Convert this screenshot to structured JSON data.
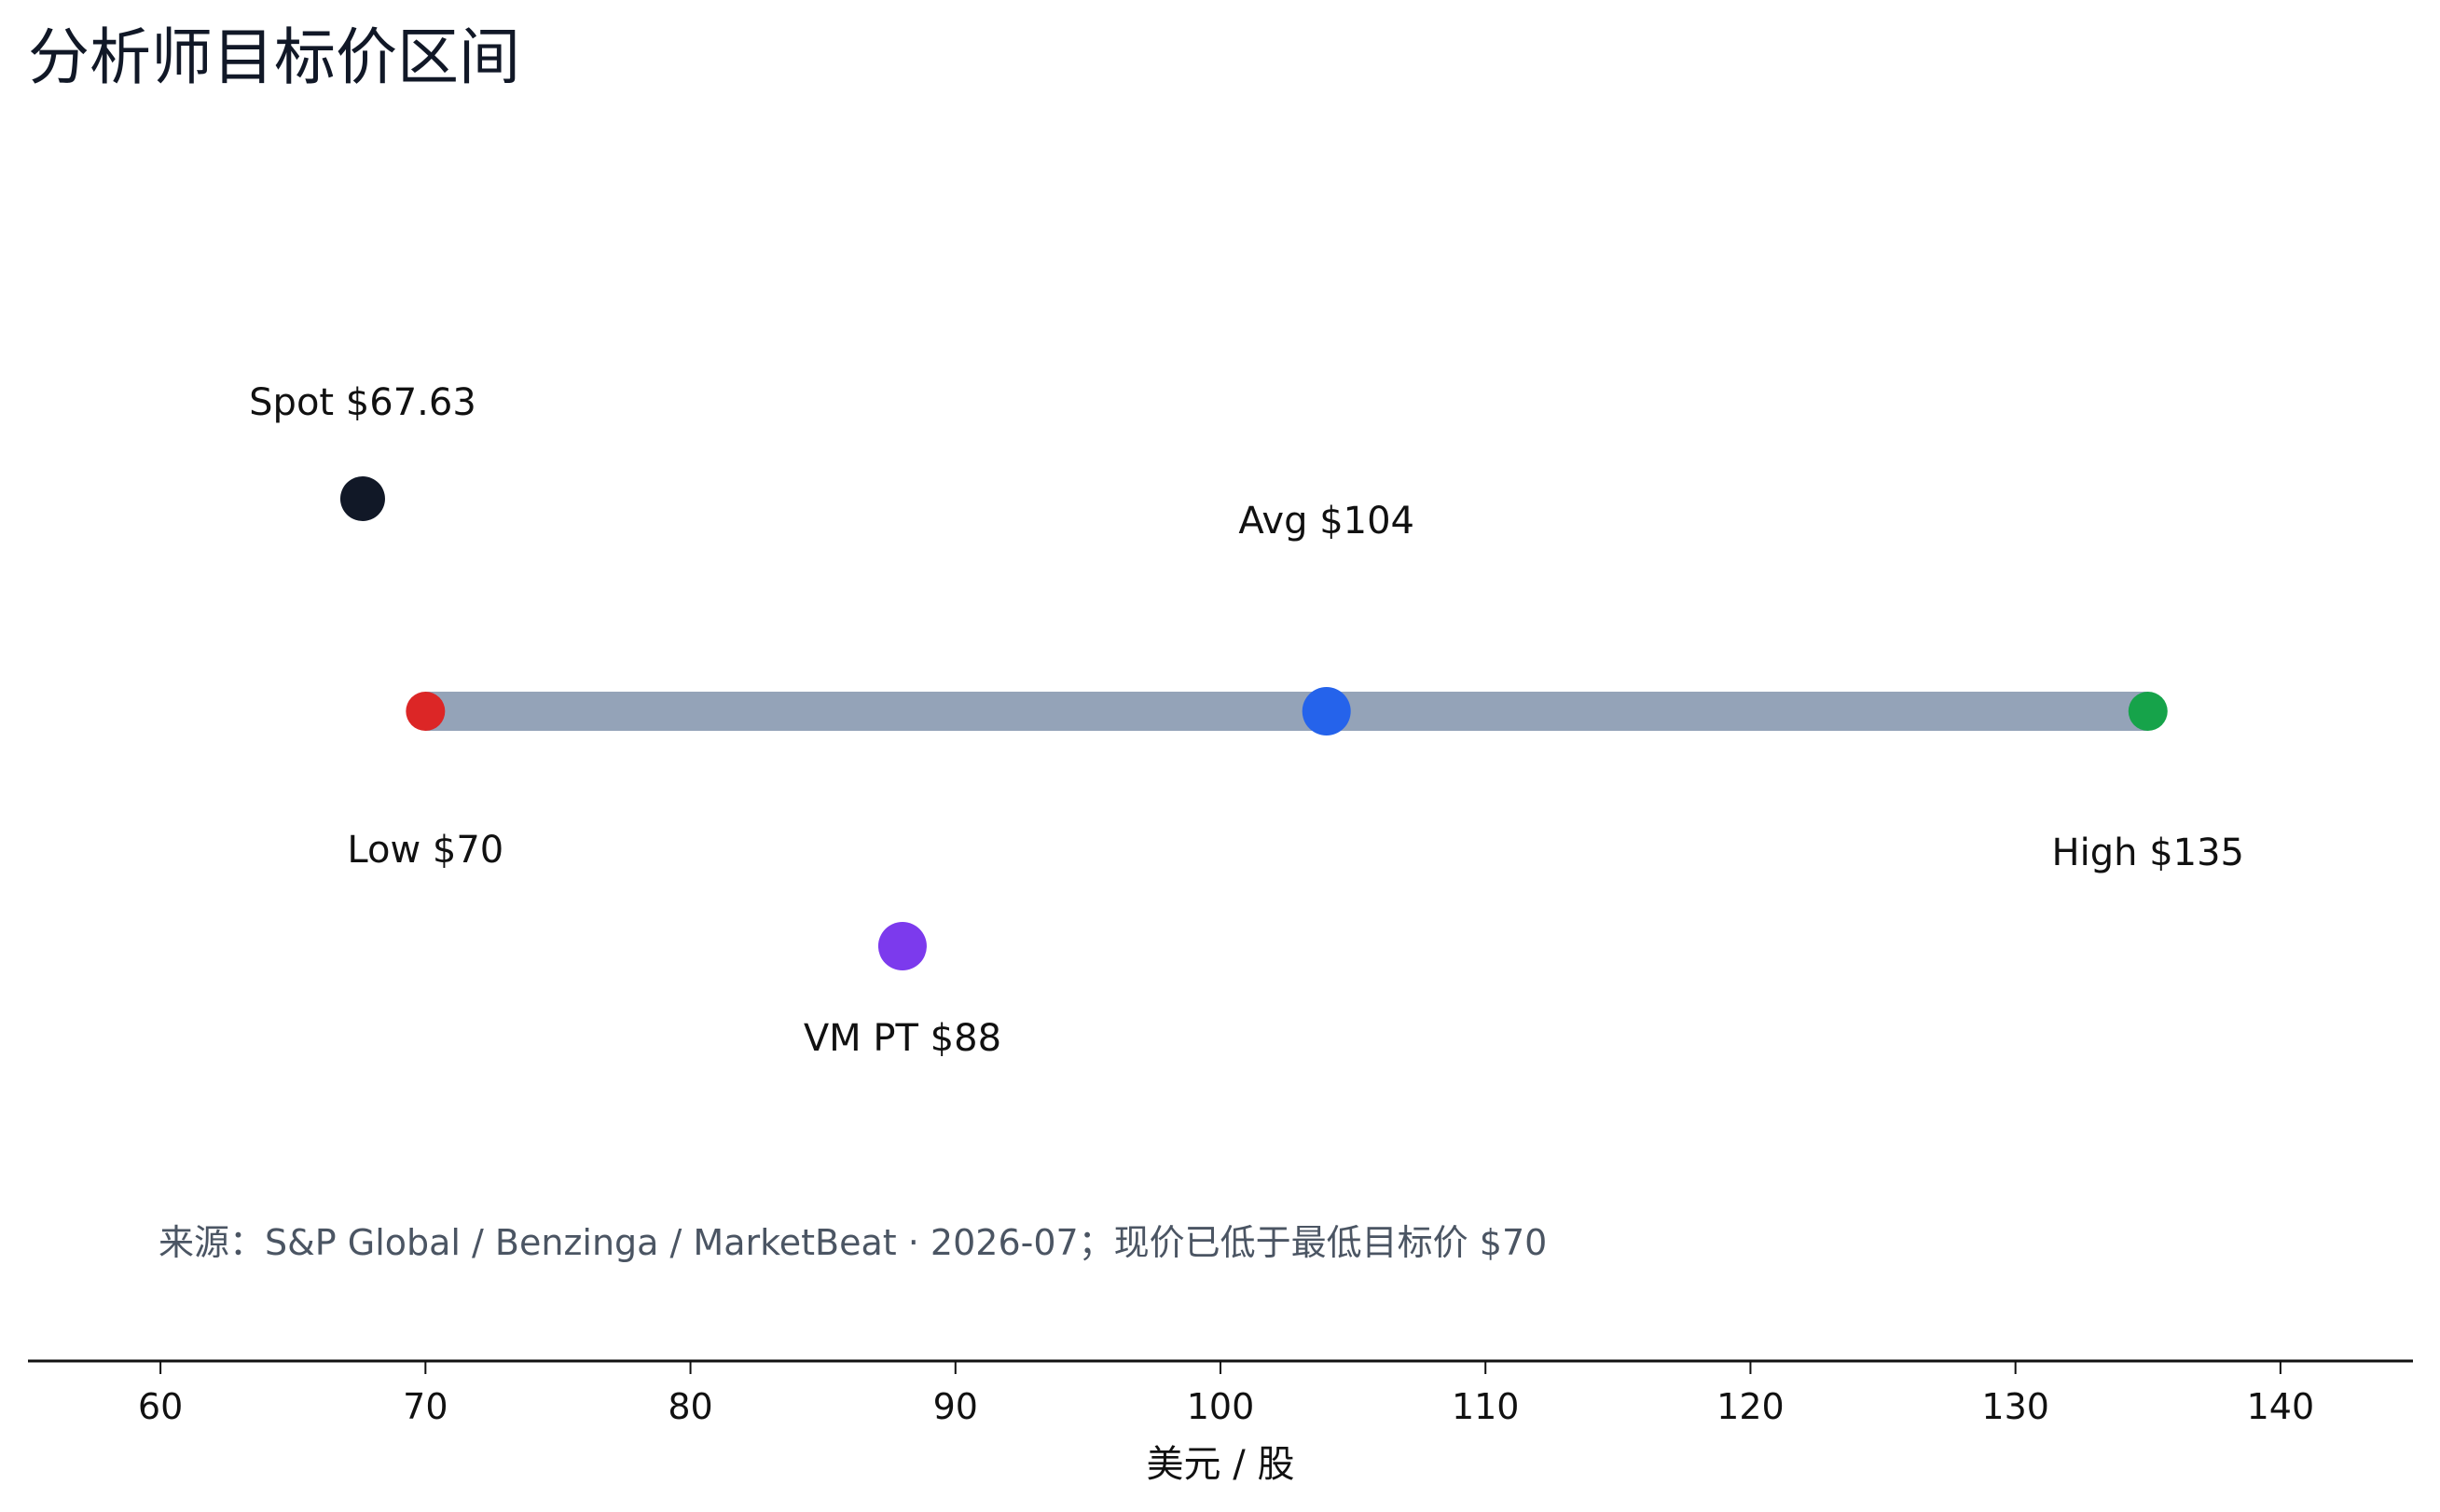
{
  "chart_data": {
    "type": "scatter",
    "title": "分析师目标价区间",
    "xlabel": "美元 / 股",
    "ylabel": "",
    "xlim": [
      55,
      145
    ],
    "xticks": [
      60,
      70,
      80,
      90,
      100,
      110,
      120,
      130,
      140
    ],
    "range_bar": {
      "low": 70,
      "high": 135,
      "color": "#94a3b8"
    },
    "points": [
      {
        "key": "spot",
        "label": "Spot $67.63",
        "x": 67.63,
        "color": "#111827",
        "label_pos": "above"
      },
      {
        "key": "low",
        "label": "Low $70",
        "x": 70,
        "color": "#dc2626",
        "label_pos": "below"
      },
      {
        "key": "avg",
        "label": "Avg $104",
        "x": 104,
        "color": "#2563eb",
        "label_pos": "above"
      },
      {
        "key": "high",
        "label": "High $135",
        "x": 135,
        "color": "#16a34a",
        "label_pos": "below"
      },
      {
        "key": "vm-pt",
        "label": "VM PT $88",
        "x": 88,
        "color": "#7c3aed",
        "label_pos": "below"
      }
    ],
    "annotation": "来源：S&P Global / Benzinga / MarketBeat · 2026-07；现价已低于最低目标价 $70",
    "grid": false,
    "legend": "none"
  }
}
